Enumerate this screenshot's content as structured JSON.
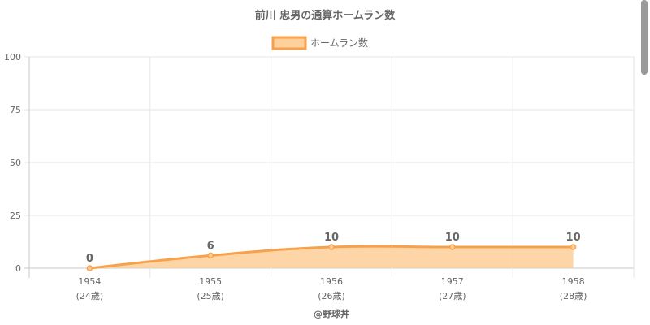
{
  "chart_data": {
    "type": "area",
    "title": "前川 忠男の通算ホームラン数",
    "legend": {
      "position": "top",
      "label": "ホームラン数"
    },
    "categories": [
      "1954",
      "1955",
      "1956",
      "1957",
      "1958"
    ],
    "sublabels": [
      "(24歳)",
      "(25歳)",
      "(26歳)",
      "(27歳)",
      "(28歳)"
    ],
    "series": [
      {
        "name": "ホームラン数",
        "values": [
          0,
          6,
          10,
          10,
          10
        ]
      }
    ],
    "data_labels": [
      "0",
      "6",
      "10",
      "10",
      "10"
    ],
    "ylim": [
      0,
      100
    ],
    "yticks": [
      "0",
      "25",
      "50",
      "75",
      "100"
    ],
    "grid": true,
    "colors": {
      "line": "#f7a14b",
      "fill": "#fdd09c",
      "grid": "#e6e6e6"
    }
  },
  "footer": {
    "credit": "@野球丼"
  }
}
